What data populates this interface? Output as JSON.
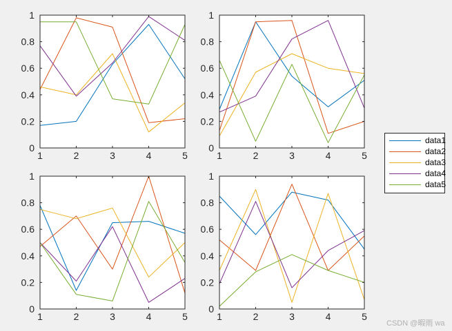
{
  "chart_data": [
    {
      "type": "line",
      "x": [
        1,
        2,
        3,
        4,
        5
      ],
      "xlim": [
        1,
        5
      ],
      "ylim": [
        0,
        1
      ],
      "xticks": [
        "1",
        "2",
        "3",
        "4",
        "5"
      ],
      "yticks": [
        "0",
        "0.2",
        "0.4",
        "0.6",
        "0.8",
        "1"
      ],
      "series": [
        {
          "name": "data1",
          "values": [
            0.17,
            0.2,
            0.63,
            0.93,
            0.52
          ]
        },
        {
          "name": "data2",
          "values": [
            0.44,
            0.98,
            0.91,
            0.19,
            0.22
          ]
        },
        {
          "name": "data3",
          "values": [
            0.46,
            0.4,
            0.71,
            0.12,
            0.34
          ]
        },
        {
          "name": "data4",
          "values": [
            0.77,
            0.39,
            0.64,
            0.99,
            0.81
          ]
        },
        {
          "name": "data5",
          "values": [
            0.95,
            0.95,
            0.37,
            0.33,
            0.93
          ]
        }
      ]
    },
    {
      "type": "line",
      "x": [
        1,
        2,
        3,
        4,
        5
      ],
      "xlim": [
        1,
        5
      ],
      "ylim": [
        0,
        1
      ],
      "xticks": [
        "1",
        "2",
        "3",
        "4",
        "5"
      ],
      "yticks": [
        "0",
        "0.2",
        "0.4",
        "0.6",
        "0.8",
        "1"
      ],
      "series": [
        {
          "name": "data1",
          "values": [
            0.29,
            0.95,
            0.54,
            0.31,
            0.51
          ]
        },
        {
          "name": "data2",
          "values": [
            0.13,
            0.95,
            0.96,
            0.11,
            0.2
          ]
        },
        {
          "name": "data3",
          "values": [
            0.09,
            0.57,
            0.71,
            0.6,
            0.56
          ]
        },
        {
          "name": "data4",
          "values": [
            0.27,
            0.39,
            0.82,
            0.96,
            0.3
          ]
        },
        {
          "name": "data5",
          "values": [
            0.66,
            0.05,
            0.63,
            0.04,
            0.55
          ]
        }
      ]
    },
    {
      "type": "line",
      "x": [
        1,
        2,
        3,
        4,
        5
      ],
      "xlim": [
        1,
        5
      ],
      "ylim": [
        0,
        1
      ],
      "xticks": [
        "1",
        "2",
        "3",
        "4",
        "5"
      ],
      "yticks": [
        "0",
        "0.2",
        "0.4",
        "0.6",
        "0.8",
        "1"
      ],
      "series": [
        {
          "name": "data1",
          "values": [
            0.78,
            0.14,
            0.65,
            0.66,
            0.57
          ]
        },
        {
          "name": "data2",
          "values": [
            0.47,
            0.7,
            0.3,
            1.0,
            0.12
          ]
        },
        {
          "name": "data3",
          "values": [
            0.75,
            0.68,
            0.76,
            0.24,
            0.5
          ]
        },
        {
          "name": "data4",
          "values": [
            0.5,
            0.21,
            0.62,
            0.05,
            0.23
          ]
        },
        {
          "name": "data5",
          "values": [
            0.5,
            0.11,
            0.06,
            0.81,
            0.35
          ]
        }
      ]
    },
    {
      "type": "line",
      "x": [
        1,
        2,
        3,
        4,
        5
      ],
      "xlim": [
        1,
        5
      ],
      "ylim": [
        0,
        1
      ],
      "xticks": [
        "1",
        "2",
        "3",
        "4",
        "5"
      ],
      "yticks": [
        "0",
        "0.2",
        "0.4",
        "0.6",
        "0.8",
        "1"
      ],
      "series": [
        {
          "name": "data1",
          "values": [
            0.85,
            0.56,
            0.88,
            0.82,
            0.45
          ]
        },
        {
          "name": "data2",
          "values": [
            0.52,
            0.29,
            0.94,
            0.29,
            0.55
          ]
        },
        {
          "name": "data3",
          "values": [
            0.29,
            0.9,
            0.05,
            0.87,
            0.07
          ]
        },
        {
          "name": "data4",
          "values": [
            0.19,
            0.81,
            0.16,
            0.44,
            0.59
          ]
        },
        {
          "name": "data5",
          "values": [
            0.02,
            0.28,
            0.41,
            0.29,
            0.2
          ]
        }
      ]
    }
  ],
  "legend": {
    "placement": "right",
    "entries": [
      {
        "name": "data1",
        "color": "#0072BD"
      },
      {
        "name": "data2",
        "color": "#D95319"
      },
      {
        "name": "data3",
        "color": "#EDB120"
      },
      {
        "name": "data4",
        "color": "#7E2F8E"
      },
      {
        "name": "data5",
        "color": "#77AC30"
      }
    ]
  },
  "watermark": "CSDN @暇雨 wa"
}
